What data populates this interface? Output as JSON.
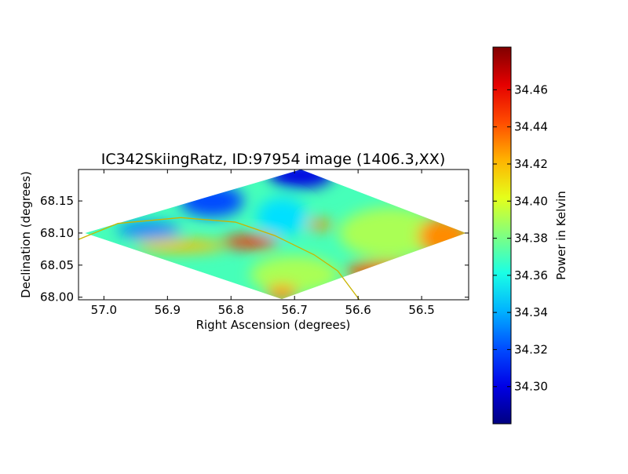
{
  "chart_data": {
    "type": "heatmap",
    "title": "IC342SkiingRatz, ID:97954 image (1406.3,XX)",
    "xlabel": "Right Ascension (degrees)",
    "ylabel": "Declination (degrees)",
    "xlim": [
      57.04,
      56.426
    ],
    "ylim": [
      67.996,
      68.199
    ],
    "xticks": [
      "57.0",
      "56.9",
      "56.8",
      "56.7",
      "56.6",
      "56.5"
    ],
    "yticks": [
      "68.00",
      "68.05",
      "68.10",
      "68.15"
    ],
    "colorbar": {
      "label": "Power in Kelvin",
      "range": [
        34.28,
        34.483
      ],
      "ticks": [
        "34.30",
        "34.32",
        "34.34",
        "34.36",
        "34.38",
        "34.40",
        "34.42",
        "34.44",
        "34.46"
      ],
      "colormap": "jet"
    },
    "coverage_outline": [
      [
        57.03,
        68.1
      ],
      [
        56.69,
        68.199
      ],
      [
        56.43,
        68.1
      ],
      [
        56.72,
        67.997
      ]
    ],
    "base_value": 34.37,
    "regions": [
      {
        "ra": 56.69,
        "dec": 68.19,
        "rra": 0.05,
        "rdec": 0.02,
        "value": 34.3
      },
      {
        "ra": 56.83,
        "dec": 68.15,
        "rra": 0.05,
        "rdec": 0.025,
        "value": 34.32
      },
      {
        "ra": 56.93,
        "dec": 68.105,
        "rra": 0.05,
        "rdec": 0.012,
        "value": 34.33
      },
      {
        "ra": 56.55,
        "dec": 68.1,
        "rra": 0.08,
        "rdec": 0.04,
        "value": 34.39
      },
      {
        "ra": 56.7,
        "dec": 68.035,
        "rra": 0.07,
        "rdec": 0.03,
        "value": 34.39
      },
      {
        "ra": 56.88,
        "dec": 68.08,
        "rra": 0.07,
        "rdec": 0.01,
        "value": 34.42
      },
      {
        "ra": 56.77,
        "dec": 68.086,
        "rra": 0.045,
        "rdec": 0.01,
        "value": 34.45
      },
      {
        "ra": 56.465,
        "dec": 68.095,
        "rra": 0.04,
        "rdec": 0.03,
        "value": 34.43
      },
      {
        "ra": 56.56,
        "dec": 68.04,
        "rra": 0.06,
        "rdec": 0.015,
        "value": 34.44
      },
      {
        "ra": 56.72,
        "dec": 68.007,
        "rra": 0.025,
        "rdec": 0.012,
        "value": 34.43
      },
      {
        "ra": 56.66,
        "dec": 68.113,
        "rra": 0.02,
        "rdec": 0.008,
        "value": 34.43
      },
      {
        "ra": 56.72,
        "dec": 68.125,
        "rra": 0.04,
        "rdec": 0.03,
        "value": 34.35
      }
    ],
    "overlay_curve": [
      [
        57.04,
        68.09
      ],
      [
        56.978,
        68.115
      ],
      [
        56.879,
        68.124
      ],
      [
        56.793,
        68.117
      ],
      [
        56.731,
        68.096
      ],
      [
        56.669,
        68.066
      ],
      [
        56.632,
        68.041
      ],
      [
        56.598,
        67.996
      ]
    ],
    "overlay_color": "#c8b400"
  }
}
